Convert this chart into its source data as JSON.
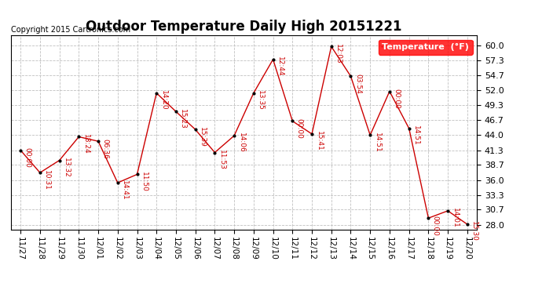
{
  "title": "Outdoor Temperature Daily High 20151221",
  "copyright": "Copyright 2015 Cartronics.com",
  "legend_label": "Temperature  (°F)",
  "x_labels": [
    "11/27",
    "11/28",
    "11/29",
    "11/30",
    "12/01",
    "12/02",
    "12/03",
    "12/04",
    "12/05",
    "12/06",
    "12/07",
    "12/08",
    "12/09",
    "12/10",
    "12/11",
    "12/12",
    "12/13",
    "12/14",
    "12/15",
    "12/16",
    "12/17",
    "12/18",
    "12/19",
    "12/20"
  ],
  "y_ticks": [
    28.0,
    30.7,
    33.3,
    36.0,
    38.7,
    41.3,
    44.0,
    46.7,
    49.3,
    52.0,
    54.7,
    57.3,
    60.0
  ],
  "ylim": [
    27.2,
    61.8
  ],
  "xlim": [
    -0.5,
    23.5
  ],
  "temperatures": [
    41.3,
    37.3,
    39.5,
    43.7,
    42.9,
    35.5,
    37.0,
    51.5,
    48.2,
    45.0,
    40.9,
    43.9,
    51.5,
    57.5,
    46.5,
    44.2,
    59.8,
    54.5,
    44.0,
    51.8,
    45.2,
    29.2,
    30.5,
    28.1
  ],
  "time_labels": [
    "00:00",
    "10:31",
    "13:32",
    "18:24",
    "06:36",
    "14:41",
    "11:50",
    "14:20",
    "15:23",
    "15:39",
    "11:53",
    "14:06",
    "13:35",
    "12:44",
    "00:00",
    "15:41",
    "12:03",
    "03:54",
    "14:51",
    "00:00",
    "14:51",
    "00:00",
    "14:01",
    "15:30"
  ],
  "background_color": "#ffffff",
  "line_color": "#cc0000",
  "point_color": "#000000",
  "grid_color": "#c0c0c0",
  "title_fontsize": 12,
  "tick_fontsize": 7.5,
  "copyright_fontsize": 7,
  "annotation_fontsize": 6.5
}
